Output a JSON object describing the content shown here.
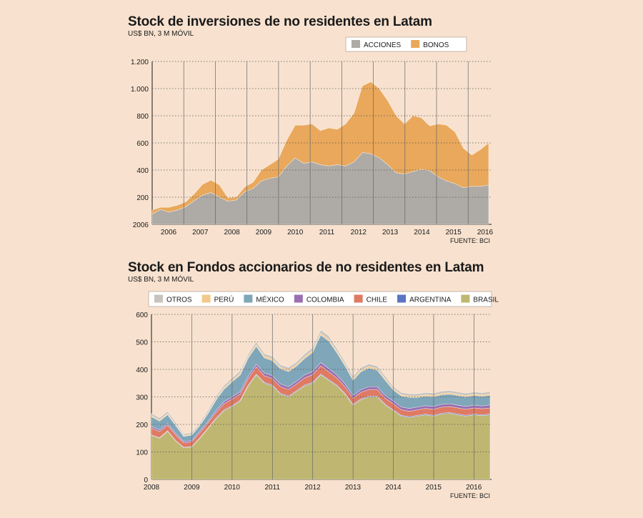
{
  "chart_data": [
    {
      "type": "area",
      "stacked": true,
      "title": "Stock de inversiones de no residentes en Latam",
      "subtitle": "US$ BN, 3 M MÓVIL",
      "source": "FUENTE: BCI",
      "ylim": [
        0,
        1200
      ],
      "yticks": [
        "1.200",
        "1.000",
        "800",
        "600",
        "400",
        "200"
      ],
      "ytick_values": [
        1200,
        1000,
        800,
        600,
        400,
        200
      ],
      "y_origin_label": "2006",
      "x_labels": [
        "2006",
        "2007",
        "2008",
        "2009",
        "2010",
        "2011",
        "2012",
        "2013",
        "2014",
        "2015",
        "2016"
      ],
      "x_start": 2005.5,
      "x_end": 2016.15,
      "x_year_step": 0.25,
      "series": [
        {
          "name": "ACCIONES",
          "color": "#aeaaa6",
          "values": [
            75,
            110,
            90,
            105,
            130,
            175,
            215,
            235,
            200,
            170,
            180,
            240,
            265,
            320,
            340,
            350,
            430,
            490,
            450,
            460,
            440,
            430,
            440,
            430,
            460,
            530,
            520,
            490,
            440,
            380,
            370,
            390,
            405,
            395,
            350,
            320,
            300,
            270,
            280,
            280,
            290
          ]
        },
        {
          "name": "BONOS",
          "color": "#e9a85b",
          "values": [
            30,
            15,
            35,
            35,
            35,
            50,
            80,
            90,
            90,
            25,
            20,
            35,
            45,
            80,
            100,
            130,
            190,
            240,
            280,
            280,
            250,
            280,
            260,
            310,
            360,
            490,
            530,
            510,
            470,
            420,
            370,
            410,
            380,
            330,
            390,
            410,
            380,
            290,
            230,
            270,
            310
          ]
        }
      ]
    },
    {
      "type": "area",
      "stacked": true,
      "title": "Stock en Fondos accionarios de no residentes en Latam",
      "subtitle": "US$ BN, 3 M MÓVIL",
      "source": "FUENTE: BCI",
      "ylim": [
        0,
        600
      ],
      "yticks": [
        "600",
        "500",
        "400",
        "300",
        "200",
        "100",
        "0"
      ],
      "ytick_values": [
        600,
        500,
        400,
        300,
        200,
        100,
        0
      ],
      "x_labels": [
        "2008",
        "2009",
        "2010",
        "2011",
        "2012",
        "2013",
        "2014",
        "2015",
        "2016"
      ],
      "x_start": 2008,
      "x_end": 2016.4,
      "x_year_step": 0.2,
      "series": [
        {
          "name": "BRASIL",
          "color": "#bfb771",
          "values": [
            160,
            150,
            175,
            140,
            115,
            118,
            150,
            185,
            220,
            250,
            265,
            285,
            340,
            380,
            350,
            340,
            310,
            300,
            320,
            340,
            350,
            380,
            360,
            340,
            310,
            270,
            290,
            300,
            300,
            270,
            250,
            230,
            225,
            230,
            235,
            230,
            238,
            240,
            235,
            230,
            235,
            232,
            235
          ]
        },
        {
          "name": "ARGENTINA",
          "color": "#5b74c4",
          "values": [
            2,
            2,
            2,
            2,
            2,
            2,
            2,
            2,
            3,
            3,
            3,
            3,
            3,
            3,
            3,
            3,
            3,
            3,
            3,
            3,
            3,
            3,
            3,
            3,
            3,
            3,
            3,
            3,
            3,
            3,
            3,
            3,
            3,
            3,
            3,
            3,
            3,
            3,
            3,
            3,
            3,
            3,
            3
          ]
        },
        {
          "name": "CHILE",
          "color": "#df7a63",
          "values": [
            25,
            22,
            20,
            20,
            16,
            16,
            18,
            18,
            20,
            22,
            24,
            22,
            24,
            26,
            24,
            24,
            24,
            24,
            24,
            26,
            28,
            30,
            28,
            26,
            24,
            22,
            24,
            24,
            24,
            22,
            22,
            20,
            20,
            20,
            20,
            22,
            22,
            22,
            22,
            22,
            22,
            22,
            22
          ]
        },
        {
          "name": "COLOMBIA",
          "color": "#9a6fb1",
          "values": [
            6,
            6,
            6,
            6,
            5,
            5,
            6,
            6,
            7,
            8,
            8,
            9,
            9,
            10,
            10,
            10,
            10,
            10,
            10,
            11,
            11,
            12,
            12,
            11,
            11,
            10,
            10,
            10,
            10,
            10,
            10,
            10,
            10,
            10,
            10,
            10,
            10,
            10,
            10,
            10,
            10,
            10,
            11
          ]
        },
        {
          "name": "MÉXICO",
          "color": "#7fa6b9",
          "values": [
            35,
            32,
            32,
            28,
            18,
            20,
            20,
            28,
            38,
            45,
            55,
            60,
            65,
            65,
            55,
            55,
            55,
            55,
            55,
            60,
            70,
            100,
            100,
            80,
            65,
            55,
            65,
            68,
            60,
            55,
            40,
            40,
            40,
            35,
            35,
            35,
            35,
            35,
            35,
            35,
            35,
            35,
            35
          ]
        },
        {
          "name": "PERÚ",
          "color": "#f4c889",
          "values": [
            4,
            4,
            4,
            4,
            3,
            3,
            4,
            4,
            5,
            5,
            5,
            6,
            6,
            6,
            6,
            6,
            6,
            6,
            6,
            6,
            7,
            7,
            7,
            6,
            6,
            6,
            6,
            6,
            6,
            6,
            5,
            5,
            5,
            5,
            5,
            5,
            5,
            5,
            5,
            5,
            5,
            5,
            5
          ]
        },
        {
          "name": "OTROS",
          "color": "#c8c3bd",
          "values": [
            8,
            8,
            8,
            8,
            6,
            6,
            6,
            8,
            8,
            9,
            9,
            9,
            9,
            10,
            9,
            9,
            9,
            9,
            9,
            10,
            10,
            11,
            11,
            10,
            9,
            9,
            9,
            9,
            9,
            9,
            8,
            8,
            8,
            8,
            8,
            8,
            8,
            8,
            8,
            8,
            8,
            8,
            8
          ]
        }
      ],
      "legend_order": [
        "OTROS",
        "PERÚ",
        "MÉXICO",
        "COLOMBIA",
        "CHILE",
        "ARGENTINA",
        "BRASIL"
      ]
    }
  ]
}
